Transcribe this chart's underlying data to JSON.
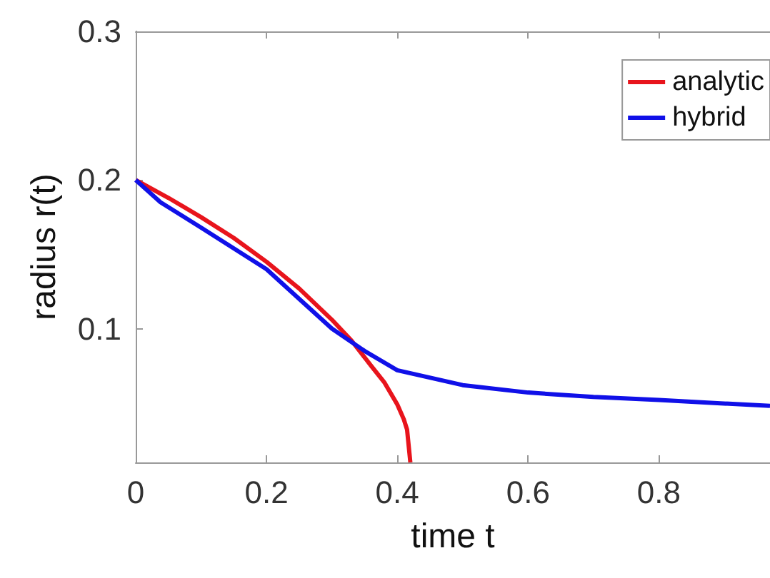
{
  "chart_data": {
    "type": "line",
    "xlabel": "time t",
    "ylabel": "radius r(t)",
    "xlim": [
      0,
      0.97
    ],
    "xticks": [
      0,
      0.2,
      0.4,
      0.6,
      0.8
    ],
    "ylim": [
      0.01,
      0.3
    ],
    "yticks": [
      0.1,
      0.2,
      0.3
    ],
    "grid": false,
    "legend": "top right",
    "marker": "none",
    "line_style": "solid",
    "series": [
      {
        "name": "analytic",
        "color": "#e8141c",
        "x": [
          0,
          0.05,
          0.1,
          0.15,
          0.2,
          0.25,
          0.3,
          0.33,
          0.36,
          0.38,
          0.4,
          0.41,
          0.415,
          0.42
        ],
        "values": [
          0.2,
          0.188,
          0.175,
          0.161,
          0.145,
          0.127,
          0.106,
          0.092,
          0.075,
          0.064,
          0.049,
          0.039,
          0.032,
          0.01
        ]
      },
      {
        "name": "hybrid",
        "color": "#1010e8",
        "x": [
          0,
          0.038,
          0.1,
          0.2,
          0.3,
          0.35,
          0.4,
          0.5,
          0.6,
          0.7,
          0.8,
          0.97
        ],
        "values": [
          0.2,
          0.185,
          0.168,
          0.14,
          0.1,
          0.085,
          0.072,
          0.062,
          0.057,
          0.054,
          0.052,
          0.048
        ]
      }
    ]
  }
}
